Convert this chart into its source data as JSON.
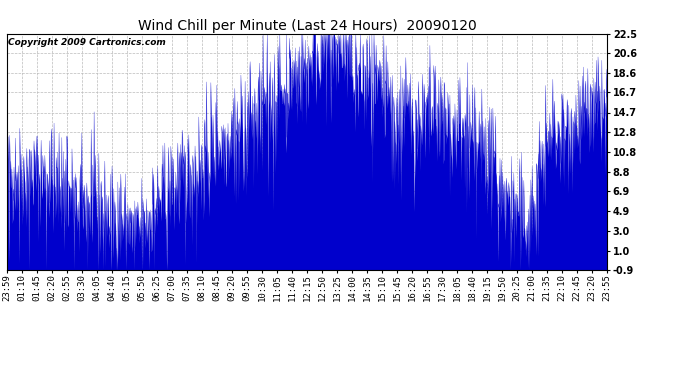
{
  "title": "Wind Chill per Minute (Last 24 Hours)  20090120",
  "copyright": "Copyright 2009 Cartronics.com",
  "bar_color": "#0000CC",
  "background_color": "#ffffff",
  "plot_bg_color": "#ffffff",
  "grid_color": "#bbbbbb",
  "ylim": [
    -0.9,
    22.5
  ],
  "yticks": [
    22.5,
    20.6,
    18.6,
    16.7,
    14.7,
    12.8,
    10.8,
    8.8,
    6.9,
    4.9,
    3.0,
    1.0,
    -0.9
  ],
  "xtick_labels": [
    "23:59",
    "01:10",
    "01:45",
    "02:20",
    "02:55",
    "03:30",
    "04:05",
    "04:40",
    "05:15",
    "05:50",
    "06:25",
    "07:00",
    "07:35",
    "08:10",
    "08:45",
    "09:20",
    "09:55",
    "10:30",
    "11:05",
    "11:40",
    "12:15",
    "12:50",
    "13:25",
    "14:00",
    "14:35",
    "15:10",
    "15:45",
    "16:20",
    "16:55",
    "17:30",
    "18:05",
    "18:40",
    "19:15",
    "19:50",
    "20:25",
    "21:00",
    "21:35",
    "22:10",
    "22:45",
    "23:20",
    "23:55"
  ],
  "seed": 42,
  "n_points": 1440,
  "figsize": [
    6.9,
    3.75
  ],
  "dpi": 100,
  "title_fontsize": 10,
  "tick_fontsize": 7,
  "copyright_fontsize": 6.5
}
